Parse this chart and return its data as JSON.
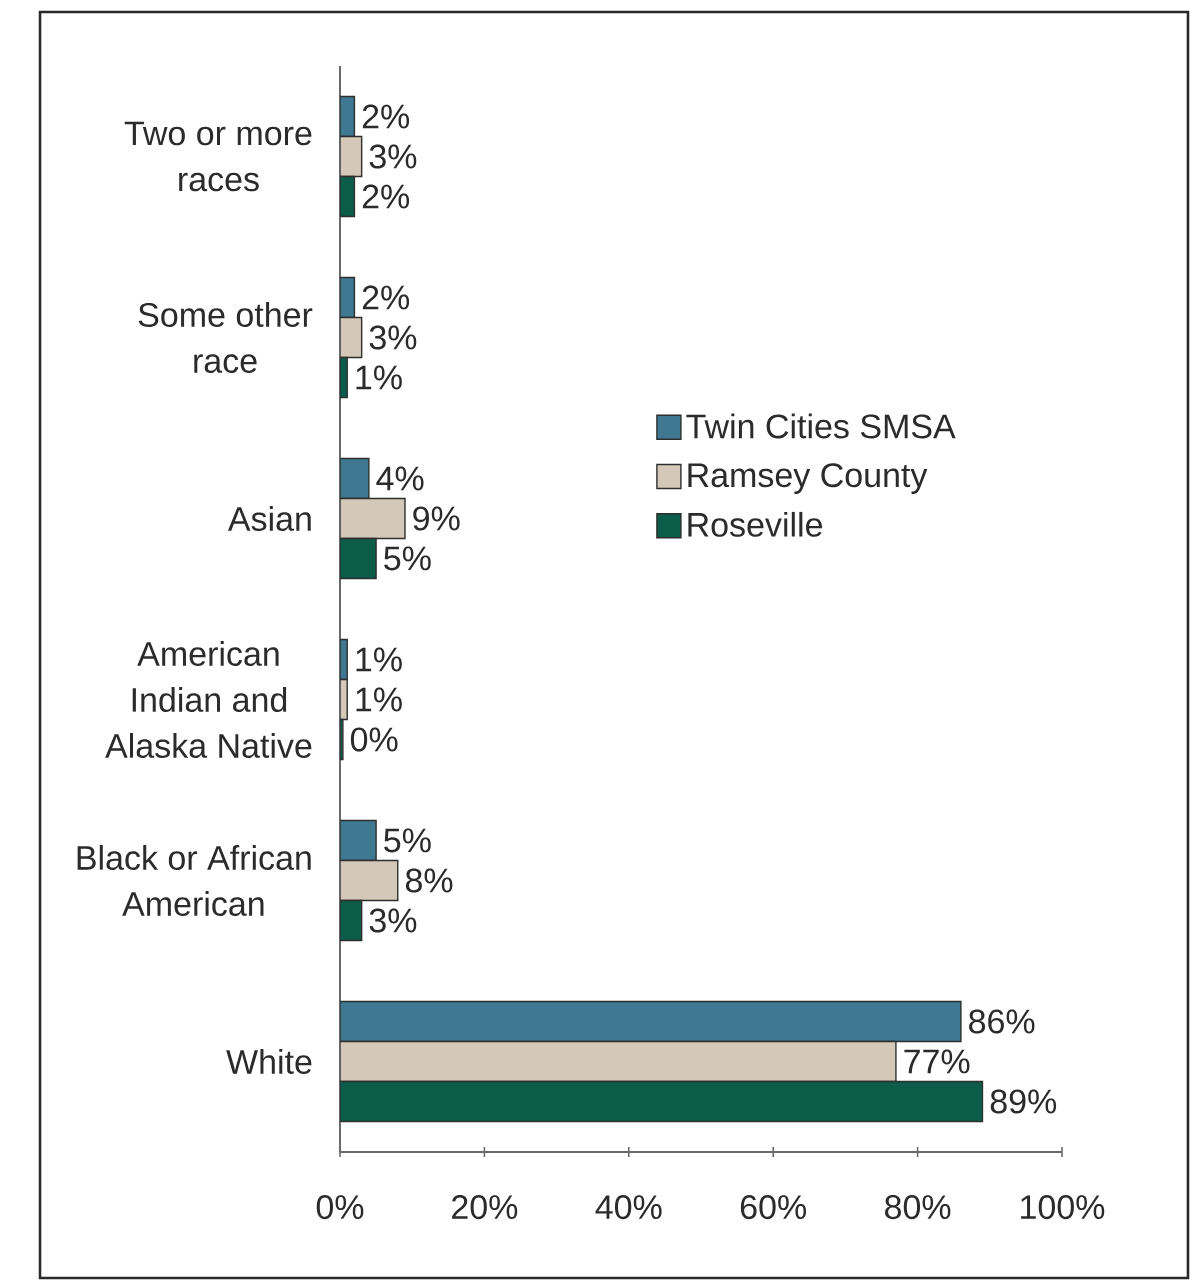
{
  "chart_data": {
    "type": "bar",
    "orientation": "horizontal",
    "categories": [
      "Two or more races",
      "Some other race",
      "Asian",
      "American Indian and Alaska Native",
      "Black or African American",
      "White"
    ],
    "series": [
      {
        "name": "Twin Cities SMSA",
        "color": "#3e7891",
        "values": [
          2,
          2,
          4,
          1,
          5,
          86
        ],
        "value_labels": [
          "2%",
          "2%",
          "4%",
          "1%",
          "5%",
          "86%"
        ]
      },
      {
        "name": "Ramsey County",
        "color": "#d4c9b8",
        "values": [
          3,
          3,
          9,
          1,
          8,
          77
        ],
        "value_labels": [
          "3%",
          "3%",
          "9%",
          "1%",
          "8%",
          "77%"
        ]
      },
      {
        "name": "Roseville",
        "color": "#0c5c4a",
        "values": [
          2,
          1,
          5,
          0.4,
          3,
          89
        ],
        "value_labels": [
          "2%",
          "1%",
          "5%",
          "0%",
          "3%",
          "89%"
        ]
      }
    ],
    "xlim": [
      0,
      100
    ],
    "xticks": [
      {
        "value": 0,
        "label": "0%"
      },
      {
        "value": 20,
        "label": "20%"
      },
      {
        "value": 40,
        "label": "40%"
      },
      {
        "value": 60,
        "label": "60%"
      },
      {
        "value": 80,
        "label": "80%"
      },
      {
        "value": 100,
        "label": "100%"
      }
    ],
    "legend": "right"
  }
}
